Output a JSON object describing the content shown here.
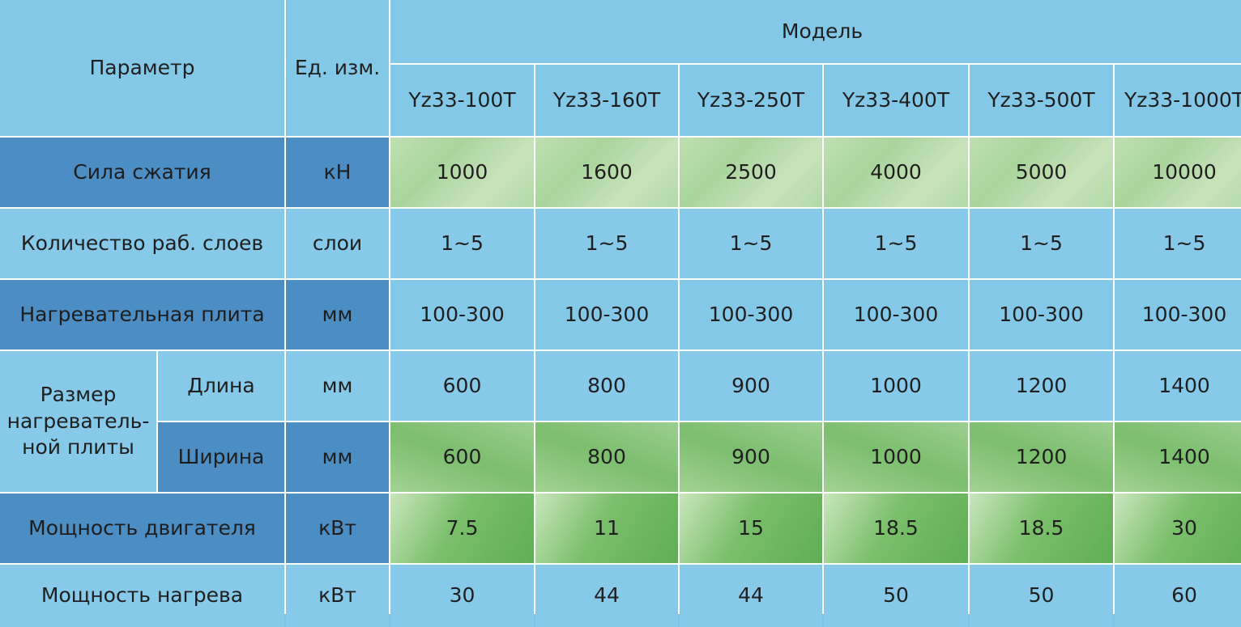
{
  "header": {
    "parameter": "Параметр",
    "unit": "Ед. изм.",
    "model": "Модель",
    "models": [
      "Yz33-100T",
      "Yz33-160T",
      "Yz33-250T",
      "Yz33-400T",
      "Yz33-500T",
      "Yz33-1000T"
    ]
  },
  "rows": [
    {
      "param": "Сила сжатия",
      "unit": "кН",
      "values": [
        "1000",
        "1600",
        "2500",
        "4000",
        "5000",
        "10000"
      ]
    },
    {
      "param": "Количество раб. слоев",
      "unit": "слои",
      "values": [
        "1~5",
        "1~5",
        "1~5",
        "1~5",
        "1~5",
        "1~5"
      ]
    },
    {
      "param": "Нагревательная плита",
      "unit": "мм",
      "values": [
        "100-300",
        "100-300",
        "100-300",
        "100-300",
        "100-300",
        "100-300"
      ]
    },
    {
      "param_group": "Размер нагреватель- ной плиты",
      "param": "Длина",
      "unit": "мм",
      "values": [
        "600",
        "800",
        "900",
        "1000",
        "1200",
        "1400"
      ]
    },
    {
      "param": "Ширина",
      "unit": "мм",
      "values": [
        "600",
        "800",
        "900",
        "1000",
        "1200",
        "1400"
      ]
    },
    {
      "param": "Мощность двигателя",
      "unit": "кВт",
      "values": [
        "7.5",
        "11",
        "15",
        "18.5",
        "18.5",
        "30"
      ]
    },
    {
      "param": "Мощность нагрева",
      "unit": "кВт",
      "values": [
        "30",
        "44",
        "44",
        "50",
        "50",
        "60"
      ]
    }
  ]
}
